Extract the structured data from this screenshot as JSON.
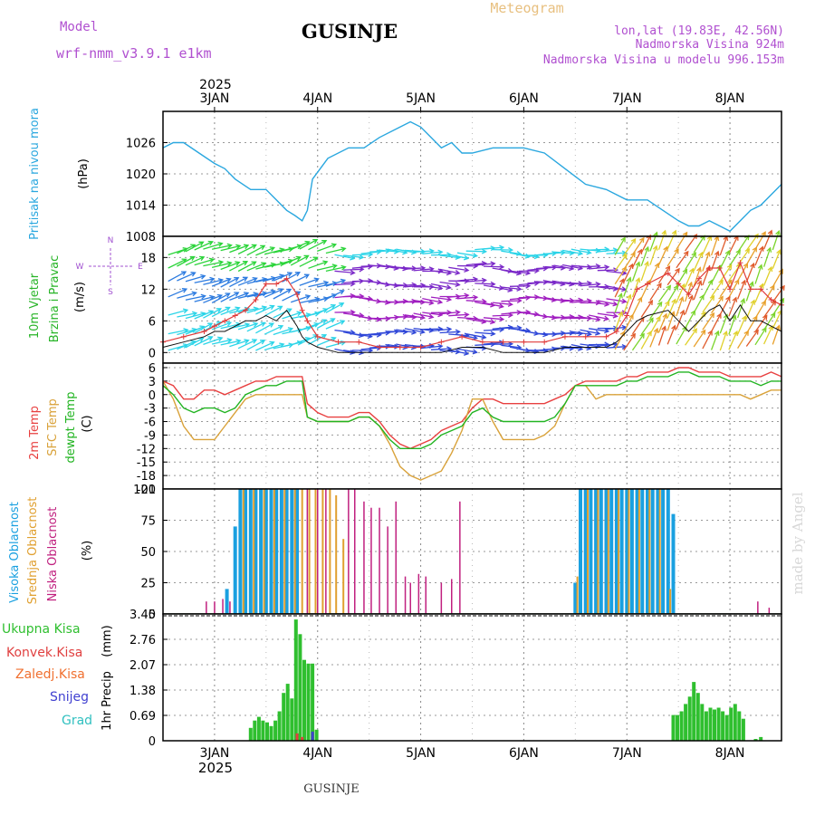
{
  "header": {
    "model_label": "Model",
    "model_name": "wrf-nmm_v3.9.1  e1km",
    "station": "GUSINJE",
    "product": "Meteogram",
    "lonlat": "lon,lat (19.83E, 42.56N)",
    "altitude": "Nadmorska Visina 924m",
    "model_altitude": "Nadmorska Visina u modelu 996.153m"
  },
  "footer": {
    "station": "GUSINJE",
    "watermark": "made by Angel"
  },
  "colors": {
    "pressure": "#2aa7df",
    "wind_label": "#27b427",
    "wind_speed": "#e03a3a",
    "wind_gust": "#e03a3a",
    "wind_mean": "#111111",
    "temp2m": "#e84040",
    "sfc": "#d9a23a",
    "dew": "#22b422",
    "high_cloud": "#1aa0e0",
    "mid_cloud": "#e0a030",
    "low_cloud": "#c0207f",
    "rain": "#2fbf2f",
    "conv": "#e04040",
    "frz": "#f07030",
    "snow": "#4040d0",
    "hail": "#30c0c0",
    "compass": "#a050d0"
  },
  "chart_data": [
    {
      "type": "line",
      "id": "pressure",
      "ylabel_parts": [
        "Pritisak na nivou mora",
        "(hPa)"
      ],
      "xlim": [
        2.5,
        8.5
      ],
      "ylim": [
        1008,
        1032
      ],
      "yticks": [
        1008,
        1014,
        1020,
        1026
      ],
      "top_year": "2025",
      "top_days": [
        "3JAN",
        "4JAN",
        "5JAN",
        "6JAN",
        "7JAN",
        "8JAN"
      ],
      "x": [
        2.5,
        2.6,
        2.7,
        2.85,
        3.0,
        3.1,
        3.2,
        3.35,
        3.5,
        3.6,
        3.7,
        3.78,
        3.85,
        3.9,
        3.95,
        4.1,
        4.3,
        4.45,
        4.6,
        4.8,
        4.9,
        5.0,
        5.1,
        5.2,
        5.3,
        5.4,
        5.5,
        5.7,
        5.9,
        6.0,
        6.2,
        6.4,
        6.6,
        6.8,
        7.0,
        7.2,
        7.35,
        7.5,
        7.6,
        7.7,
        7.8,
        7.9,
        8.0,
        8.1,
        8.2,
        8.3,
        8.4,
        8.5
      ],
      "series": [
        {
          "values": [
            1025,
            1026,
            1026,
            1024,
            1022,
            1021,
            1019,
            1017,
            1017,
            1015,
            1013,
            1012,
            1011,
            1013,
            1019,
            1023,
            1025,
            1025,
            1027,
            1029,
            1030,
            1029,
            1027,
            1025,
            1026,
            1024,
            1024,
            1025,
            1025,
            1025,
            1024,
            1021,
            1018,
            1017,
            1015,
            1015,
            1013,
            1011,
            1010,
            1010,
            1011,
            1010,
            1009,
            1011,
            1013,
            1014,
            1016,
            1018
          ]
        }
      ]
    },
    {
      "type": "line",
      "id": "wind",
      "ylabel_parts": [
        "10m Vjetar",
        "Brzina i Pravac",
        "(m/s)"
      ],
      "compass": [
        "N",
        "W",
        "E",
        "S"
      ],
      "xlim": [
        2.5,
        8.5
      ],
      "ylim": [
        -2,
        22
      ],
      "yticks": [
        0,
        6,
        12,
        18
      ],
      "x": [
        2.5,
        2.7,
        2.9,
        3.0,
        3.1,
        3.2,
        3.3,
        3.4,
        3.5,
        3.6,
        3.7,
        3.8,
        3.85,
        3.9,
        4.0,
        4.2,
        4.4,
        4.6,
        4.8,
        5.0,
        5.2,
        5.4,
        5.6,
        5.8,
        6.0,
        6.2,
        6.4,
        6.6,
        6.8,
        6.9,
        7.0,
        7.1,
        7.2,
        7.4,
        7.5,
        7.6,
        7.7,
        7.8,
        7.9,
        8.0,
        8.1,
        8.2,
        8.3,
        8.4,
        8.5
      ],
      "series": [
        {
          "values": [
            2,
            3,
            4,
            5,
            6,
            7,
            8,
            10,
            13,
            13,
            14,
            11,
            8,
            6,
            3,
            2,
            2,
            1,
            1,
            1,
            2,
            3,
            2,
            2,
            2,
            2,
            3,
            3,
            3,
            4,
            7,
            12,
            13,
            15,
            13,
            11,
            14,
            16,
            16,
            12,
            17,
            12,
            12,
            10,
            9
          ]
        },
        {
          "values": [
            1,
            2,
            3,
            4,
            4,
            5,
            6,
            6,
            7,
            6,
            8,
            5,
            3,
            2,
            1,
            0,
            0,
            0,
            0,
            0,
            0,
            1,
            1,
            0,
            0,
            0,
            1,
            1,
            1,
            2,
            4,
            6,
            7,
            8,
            6,
            4,
            6,
            8,
            9,
            6,
            9,
            6,
            6,
            5,
            4
          ]
        }
      ]
    },
    {
      "type": "line",
      "id": "temperature",
      "ylabel_parts": [
        "2m Temp",
        "SFC Temp",
        "dewpt Temp",
        "(C)"
      ],
      "xlim": [
        2.5,
        8.5
      ],
      "ylim": [
        -21,
        7
      ],
      "yticks": [
        -21,
        -18,
        -15,
        -12,
        -9,
        -6,
        -3,
        0,
        3,
        6
      ],
      "x": [
        2.5,
        2.6,
        2.7,
        2.8,
        2.9,
        3.0,
        3.1,
        3.2,
        3.3,
        3.4,
        3.5,
        3.6,
        3.7,
        3.8,
        3.85,
        3.9,
        4.0,
        4.1,
        4.2,
        4.3,
        4.4,
        4.5,
        4.6,
        4.7,
        4.8,
        4.9,
        5.0,
        5.1,
        5.2,
        5.3,
        5.4,
        5.5,
        5.6,
        5.7,
        5.8,
        5.9,
        6.0,
        6.1,
        6.2,
        6.3,
        6.4,
        6.5,
        6.6,
        6.7,
        6.8,
        6.9,
        7.0,
        7.1,
        7.2,
        7.3,
        7.4,
        7.5,
        7.6,
        7.7,
        7.8,
        7.9,
        8.0,
        8.1,
        8.2,
        8.3,
        8.4,
        8.5
      ],
      "series": [
        {
          "values": [
            3,
            2,
            -1,
            -1,
            1,
            1,
            0,
            1,
            2,
            3,
            3,
            4,
            4,
            4,
            4,
            -2,
            -4,
            -5,
            -5,
            -5,
            -4,
            -4,
            -6,
            -9,
            -11,
            -12,
            -11,
            -10,
            -8,
            -7,
            -6,
            -3,
            -1,
            -1,
            -2,
            -2,
            -2,
            -2,
            -2,
            -1,
            0,
            2,
            3,
            3,
            3,
            3,
            4,
            4,
            5,
            5,
            5,
            6,
            6,
            5,
            5,
            5,
            4,
            4,
            4,
            4,
            5,
            4
          ]
        },
        {
          "values": [
            3,
            -1,
            -7,
            -10,
            -10,
            -10,
            -7,
            -4,
            -1,
            0,
            0,
            0,
            0,
            0,
            0,
            -5,
            -6,
            -6,
            -6,
            -6,
            -5,
            -5,
            -7,
            -11,
            -16,
            -18,
            -19,
            -18,
            -17,
            -13,
            -8,
            -1,
            -1,
            -6,
            -10,
            -10,
            -10,
            -10,
            -9,
            -7,
            -2,
            2,
            2,
            -1,
            0,
            0,
            0,
            0,
            0,
            0,
            0,
            0,
            0,
            0,
            0,
            0,
            0,
            0,
            -1,
            0,
            1,
            1
          ]
        },
        {
          "values": [
            2,
            0,
            -3,
            -4,
            -3,
            -3,
            -4,
            -3,
            0,
            1,
            2,
            2,
            3,
            3,
            3,
            -5,
            -6,
            -6,
            -6,
            -6,
            -5,
            -5,
            -7,
            -10,
            -12,
            -12,
            -12,
            -11,
            -9,
            -8,
            -7,
            -4,
            -3,
            -5,
            -6,
            -6,
            -6,
            -6,
            -6,
            -5,
            -2,
            2,
            2,
            2,
            2,
            2,
            3,
            3,
            4,
            4,
            4,
            5,
            5,
            4,
            4,
            4,
            3,
            3,
            3,
            2,
            3,
            3
          ]
        }
      ]
    },
    {
      "type": "bar",
      "id": "cloud",
      "ylabel_parts": [
        "Visoka Oblacnost",
        "Srednja Oblacnost",
        "Niska Oblacnost",
        "(%)"
      ],
      "xlim": [
        2.5,
        8.5
      ],
      "ylim": [
        0,
        100
      ],
      "yticks": [
        0,
        25,
        50,
        75,
        100
      ],
      "high": [
        [
          3.12,
          20
        ],
        [
          3.2,
          70
        ],
        [
          3.25,
          100
        ],
        [
          3.3,
          100
        ],
        [
          3.35,
          100
        ],
        [
          3.4,
          100
        ],
        [
          3.45,
          100
        ],
        [
          3.5,
          100
        ],
        [
          3.55,
          100
        ],
        [
          3.6,
          100
        ],
        [
          3.65,
          100
        ],
        [
          3.7,
          100
        ],
        [
          3.75,
          100
        ],
        [
          3.8,
          100
        ],
        [
          6.5,
          25
        ],
        [
          6.55,
          100
        ],
        [
          6.6,
          100
        ],
        [
          6.65,
          100
        ],
        [
          6.7,
          100
        ],
        [
          6.75,
          100
        ],
        [
          6.8,
          100
        ],
        [
          6.85,
          100
        ],
        [
          6.9,
          100
        ],
        [
          6.95,
          100
        ],
        [
          7.0,
          100
        ],
        [
          7.05,
          100
        ],
        [
          7.1,
          100
        ],
        [
          7.15,
          100
        ],
        [
          7.2,
          100
        ],
        [
          7.25,
          100
        ],
        [
          7.3,
          100
        ],
        [
          7.35,
          100
        ],
        [
          7.4,
          100
        ],
        [
          7.45,
          80
        ]
      ],
      "mid": [
        [
          3.28,
          100
        ],
        [
          3.38,
          100
        ],
        [
          3.48,
          100
        ],
        [
          3.58,
          100
        ],
        [
          3.68,
          100
        ],
        [
          3.78,
          100
        ],
        [
          3.85,
          100
        ],
        [
          3.92,
          100
        ],
        [
          3.98,
          100
        ],
        [
          4.05,
          100
        ],
        [
          4.12,
          100
        ],
        [
          4.18,
          95
        ],
        [
          4.25,
          60
        ],
        [
          6.52,
          30
        ],
        [
          6.62,
          100
        ],
        [
          6.72,
          100
        ],
        [
          6.82,
          100
        ],
        [
          6.92,
          100
        ],
        [
          7.02,
          100
        ],
        [
          7.12,
          100
        ],
        [
          7.22,
          100
        ],
        [
          7.32,
          100
        ],
        [
          7.42,
          20
        ]
      ],
      "low": [
        [
          2.92,
          10
        ],
        [
          3.0,
          10
        ],
        [
          3.08,
          12
        ],
        [
          3.15,
          10
        ],
        [
          3.9,
          100
        ],
        [
          4.0,
          100
        ],
        [
          4.08,
          100
        ],
        [
          4.3,
          100
        ],
        [
          4.36,
          100
        ],
        [
          4.45,
          90
        ],
        [
          4.52,
          85
        ],
        [
          4.6,
          85
        ],
        [
          4.68,
          70
        ],
        [
          4.76,
          90
        ],
        [
          4.85,
          30
        ],
        [
          4.9,
          25
        ],
        [
          4.98,
          32
        ],
        [
          5.05,
          30
        ],
        [
          5.2,
          25
        ],
        [
          5.3,
          28
        ],
        [
          5.38,
          90
        ],
        [
          8.27,
          10
        ],
        [
          8.38,
          5
        ]
      ]
    },
    {
      "type": "bar",
      "id": "precip",
      "ylabel_parts": [
        "1hr Precip",
        "(mm)"
      ],
      "legend": [
        "Ukupna Kisa",
        "Konvek.Kisa",
        "Zaledj.Kisa",
        "Snijeg",
        "Grad"
      ],
      "xlim": [
        2.5,
        8.5
      ],
      "ylim": [
        0,
        3.45
      ],
      "yticks": [
        0,
        0.69,
        1.38,
        2.07,
        2.76,
        3.45
      ],
      "bottom_days": [
        "3JAN",
        "4JAN",
        "5JAN",
        "6JAN",
        "7JAN",
        "8JAN"
      ],
      "bottom_year": "2025",
      "rain": [
        [
          3.35,
          0.35
        ],
        [
          3.39,
          0.55
        ],
        [
          3.43,
          0.65
        ],
        [
          3.47,
          0.55
        ],
        [
          3.51,
          0.5
        ],
        [
          3.55,
          0.4
        ],
        [
          3.59,
          0.55
        ],
        [
          3.63,
          0.8
        ],
        [
          3.67,
          1.3
        ],
        [
          3.71,
          1.55
        ],
        [
          3.75,
          1.15
        ],
        [
          3.79,
          3.3
        ],
        [
          3.83,
          2.9
        ],
        [
          3.87,
          2.2
        ],
        [
          3.91,
          2.1
        ],
        [
          3.95,
          2.1
        ],
        [
          3.99,
          0.3
        ],
        [
          7.45,
          0.7
        ],
        [
          7.49,
          0.7
        ],
        [
          7.53,
          0.8
        ],
        [
          7.57,
          1.0
        ],
        [
          7.61,
          1.2
        ],
        [
          7.65,
          1.6
        ],
        [
          7.69,
          1.3
        ],
        [
          7.73,
          1.0
        ],
        [
          7.77,
          0.8
        ],
        [
          7.81,
          0.9
        ],
        [
          7.85,
          0.85
        ],
        [
          7.89,
          0.9
        ],
        [
          7.93,
          0.8
        ],
        [
          7.97,
          0.7
        ],
        [
          8.01,
          0.9
        ],
        [
          8.05,
          1.0
        ],
        [
          8.09,
          0.8
        ],
        [
          8.13,
          0.6
        ],
        [
          8.25,
          0.05
        ],
        [
          8.3,
          0.1
        ]
      ],
      "conv": [
        [
          3.8,
          0.2
        ],
        [
          3.85,
          0.1
        ]
      ],
      "snow": [
        [
          3.95,
          0.25
        ]
      ]
    }
  ]
}
